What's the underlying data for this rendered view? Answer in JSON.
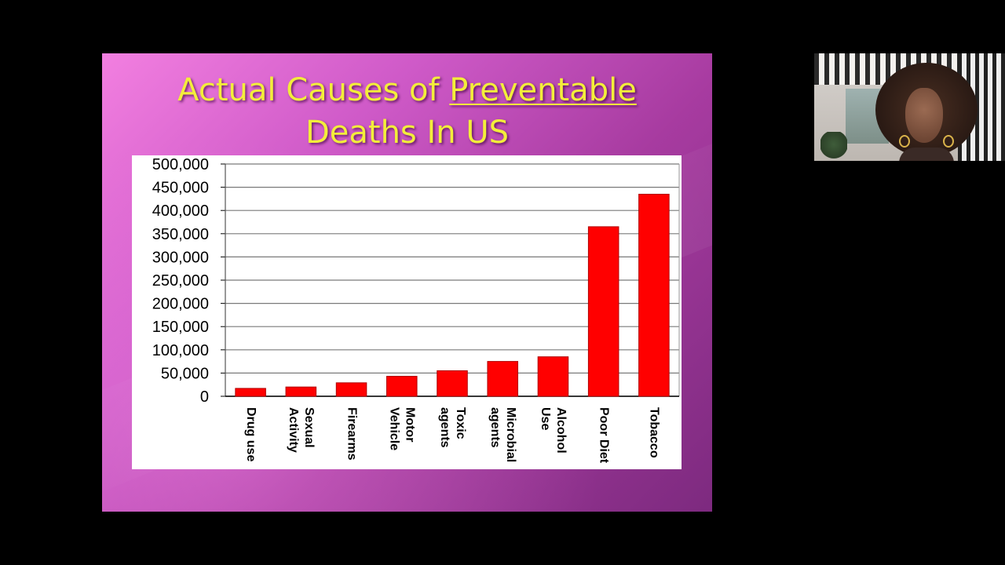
{
  "slide": {
    "title_line1_part1": "Actual Causes of ",
    "title_line1_part2": "Preventable",
    "title_line2": "Deaths In US",
    "title_color": "#f3ee3a"
  },
  "webcam": {
    "icon": "person-video-icon"
  },
  "chart_data": {
    "type": "bar",
    "title": "",
    "xlabel": "",
    "ylabel": "",
    "ylim": [
      0,
      500000
    ],
    "yticks": [
      0,
      50000,
      100000,
      150000,
      200000,
      250000,
      300000,
      350000,
      400000,
      450000,
      500000
    ],
    "ytick_labels": [
      "0",
      "50,000",
      "100,000",
      "150,000",
      "200,000",
      "250,000",
      "300,000",
      "350,000",
      "400,000",
      "450,000",
      "500,000"
    ],
    "grid": true,
    "legend": "none",
    "bar_color": "#ff0000",
    "categories": [
      [
        "Drug use"
      ],
      [
        "Sexual",
        "Activity"
      ],
      [
        "Firearms"
      ],
      [
        "Motor",
        "Vehicle"
      ],
      [
        "Toxic",
        "agents"
      ],
      [
        "Microbial",
        "agents"
      ],
      [
        "Alcohol",
        "Use"
      ],
      [
        "Poor Diet"
      ],
      [
        "Tobacco"
      ]
    ],
    "values": [
      17000,
      20000,
      29000,
      43000,
      55000,
      75000,
      85000,
      365000,
      435000
    ]
  }
}
